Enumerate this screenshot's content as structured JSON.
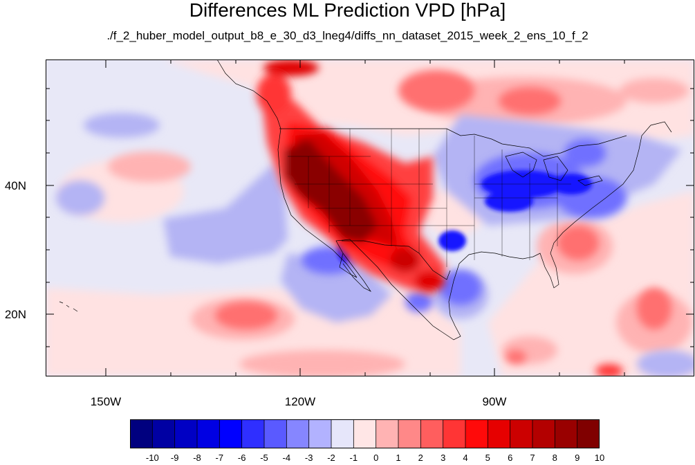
{
  "title": "Differences ML Prediction VPD [hPa]",
  "subtitle": "./f_2_huber_model_output_b8_e_30_d3_lneg4/diffs_nn_dataset_2015_week_2_ens_10_f_2",
  "map": {
    "projection": "cylindrical-equidistant",
    "lon_range": [
      -160,
      -60
    ],
    "lat_range": [
      11,
      59
    ],
    "lon_tick_labels": [
      {
        "value": -150,
        "label": "150W"
      },
      {
        "value": -120,
        "label": "120W"
      },
      {
        "value": -90,
        "label": "90W"
      }
    ],
    "lat_tick_labels": [
      {
        "value": 40,
        "label": "40N"
      },
      {
        "value": 20,
        "label": "20N"
      }
    ],
    "background_color": "#e8e8f7",
    "boundary_color": "#000000"
  },
  "colorbar": {
    "labels": [
      "-10",
      "-9",
      "-8",
      "-7",
      "-6",
      "-5",
      "-4",
      "-3",
      "-2",
      "-1",
      "0",
      "1",
      "2",
      "3",
      "4",
      "5",
      "6",
      "7",
      "8",
      "9",
      "10"
    ],
    "colors": [
      "#00007f",
      "#0000a3",
      "#0000c4",
      "#0000e3",
      "#0000ff",
      "#2f2fff",
      "#5a5aff",
      "#8686ff",
      "#b2b2ff",
      "#e6e6fa",
      "#ffe6e6",
      "#ffb3b3",
      "#ff8888",
      "#ff5e5e",
      "#ff3535",
      "#ff0a0a",
      "#e60000",
      "#cc0000",
      "#b30000",
      "#990000",
      "#800000"
    ]
  }
}
